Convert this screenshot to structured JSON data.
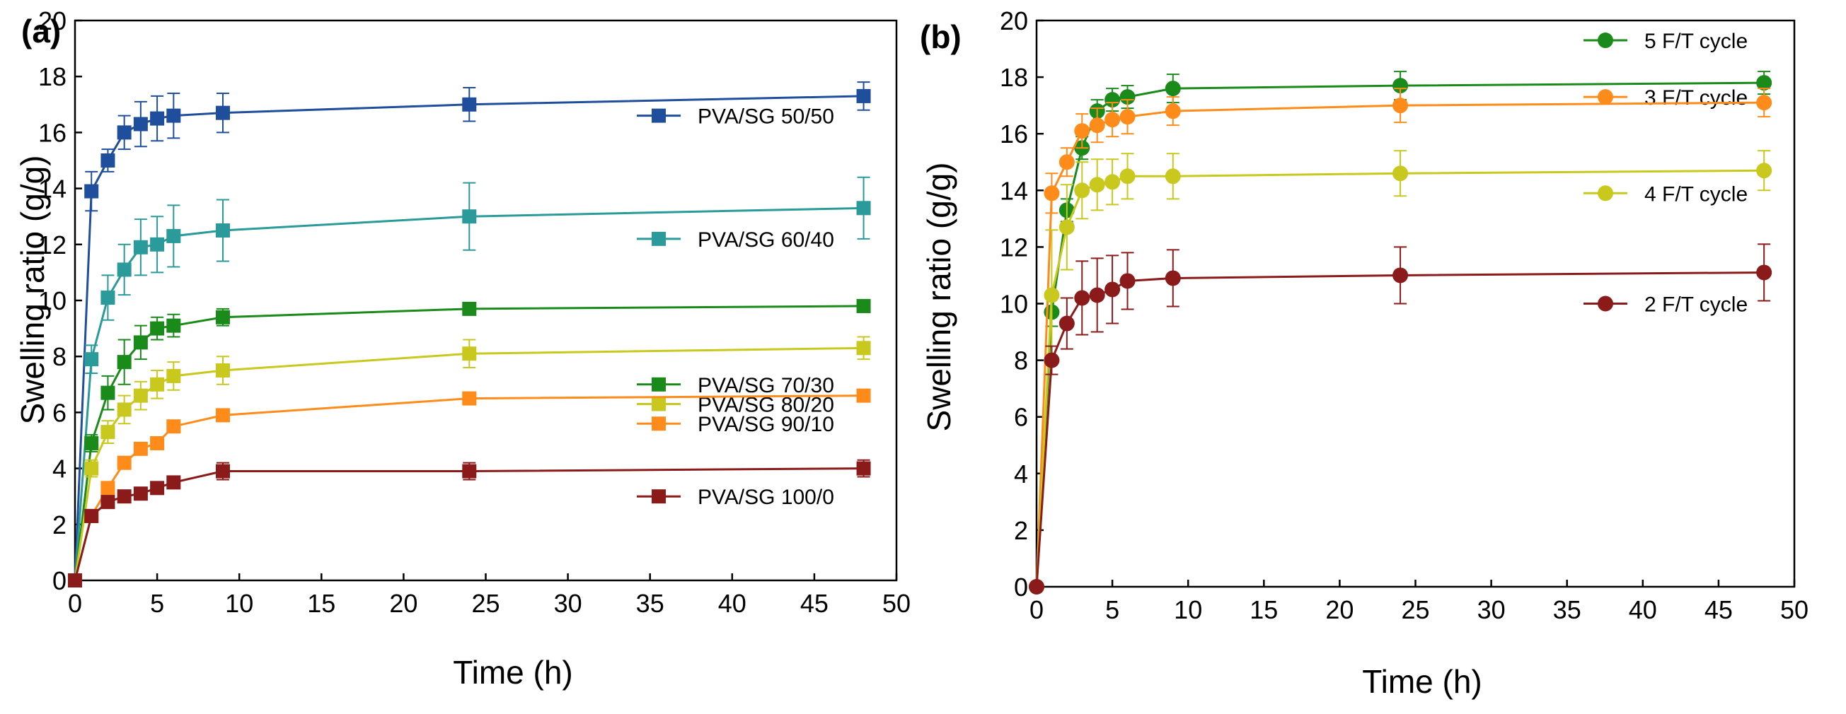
{
  "chart_data": [
    {
      "type": "line",
      "panel_label": "(a)",
      "xlabel": "Time (h)",
      "ylabel": "Swelling ratio (g/g)",
      "xlim": [
        0,
        50
      ],
      "ylim": [
        0,
        20
      ],
      "xticks": [
        "0",
        "5",
        "10",
        "15",
        "20",
        "25",
        "30",
        "35",
        "40",
        "45",
        "50"
      ],
      "yticks": [
        "0",
        "2",
        "4",
        "6",
        "8",
        "10",
        "12",
        "14",
        "16",
        "18",
        "20"
      ],
      "grid": false,
      "marker": "square",
      "x": [
        0,
        1,
        2,
        3,
        4,
        5,
        6,
        9,
        24,
        48
      ],
      "series": [
        {
          "name": "PVA/SG 50/50",
          "color": "#1f4e9c",
          "values": [
            0,
            13.9,
            15.0,
            16.0,
            16.3,
            16.5,
            16.6,
            16.7,
            17.0,
            17.3
          ],
          "errors": [
            0,
            0.7,
            0.4,
            0.6,
            0.8,
            0.8,
            0.8,
            0.7,
            0.6,
            0.5
          ],
          "legend_y": 16.6
        },
        {
          "name": "PVA/SG 60/40",
          "color": "#2a9a9a",
          "values": [
            0,
            7.9,
            10.1,
            11.1,
            11.9,
            12.0,
            12.3,
            12.5,
            13.0,
            13.3
          ],
          "errors": [
            0,
            0.5,
            0.8,
            0.9,
            1.0,
            1.0,
            1.1,
            1.1,
            1.2,
            1.1
          ],
          "legend_y": 12.2
        },
        {
          "name": "PVA/SG 70/30",
          "color": "#1a8a1a",
          "values": [
            0,
            4.9,
            6.7,
            7.8,
            8.5,
            9.0,
            9.1,
            9.4,
            9.7,
            9.8
          ],
          "errors": [
            0,
            0.3,
            0.6,
            0.8,
            0.6,
            0.4,
            0.4,
            0.3,
            0.2,
            0.2
          ],
          "legend_y": 7.0
        },
        {
          "name": "PVA/SG 80/20",
          "color": "#c8c81e",
          "values": [
            0,
            4.0,
            5.3,
            6.1,
            6.6,
            7.0,
            7.3,
            7.5,
            8.1,
            8.3
          ],
          "errors": [
            0,
            0.3,
            0.4,
            0.5,
            0.5,
            0.5,
            0.5,
            0.5,
            0.5,
            0.4
          ],
          "legend_y": 6.3
        },
        {
          "name": "PVA/SG 90/10",
          "color": "#ff8c1a",
          "values": [
            0,
            2.3,
            3.3,
            4.2,
            4.7,
            4.9,
            5.5,
            5.9,
            6.5,
            6.6
          ],
          "errors": [
            0,
            0.2,
            0.2,
            0.2,
            0.2,
            0.2,
            0.2,
            0.2,
            0.2,
            0.2
          ],
          "legend_y": 5.6
        },
        {
          "name": "PVA/SG 100/0",
          "color": "#8b1a1a",
          "values": [
            0,
            2.3,
            2.8,
            3.0,
            3.1,
            3.3,
            3.5,
            3.9,
            3.9,
            4.0
          ],
          "errors": [
            0,
            0.2,
            0.2,
            0.2,
            0.2,
            0.2,
            0.2,
            0.3,
            0.3,
            0.3
          ],
          "legend_y": 3.0
        }
      ]
    },
    {
      "type": "line",
      "panel_label": "(b)",
      "xlabel": "Time (h)",
      "ylabel": "Swelling ratio (g/g)",
      "xlim": [
        0,
        50
      ],
      "ylim": [
        0,
        20
      ],
      "xticks": [
        "0",
        "5",
        "10",
        "15",
        "20",
        "25",
        "30",
        "35",
        "40",
        "45",
        "50"
      ],
      "yticks": [
        "0",
        "2",
        "4",
        "6",
        "8",
        "10",
        "12",
        "14",
        "16",
        "18",
        "20"
      ],
      "grid": false,
      "marker": "circle",
      "x": [
        0,
        1,
        2,
        3,
        4,
        5,
        6,
        9,
        24,
        48
      ],
      "series": [
        {
          "name": "5 F/T cycle",
          "color": "#1a8a1a",
          "values": [
            0,
            9.7,
            13.3,
            15.5,
            16.8,
            17.2,
            17.3,
            17.6,
            17.7,
            17.8
          ],
          "errors": [
            0,
            0.5,
            0.4,
            0.4,
            0.4,
            0.4,
            0.4,
            0.5,
            0.5,
            0.4
          ],
          "legend_y": 19.3
        },
        {
          "name": "3 F/T cycle",
          "color": "#ff8c1a",
          "values": [
            0,
            13.9,
            15.0,
            16.1,
            16.3,
            16.5,
            16.6,
            16.8,
            17.0,
            17.1
          ],
          "errors": [
            0,
            0.7,
            0.5,
            0.6,
            0.6,
            0.6,
            0.6,
            0.5,
            0.6,
            0.5
          ],
          "legend_y": 17.3
        },
        {
          "name": "4 F/T cycle",
          "color": "#c8c81e",
          "values": [
            0,
            10.3,
            12.7,
            14.0,
            14.2,
            14.3,
            14.5,
            14.5,
            14.6,
            14.7
          ],
          "errors": [
            0,
            2.3,
            1.5,
            1.0,
            0.9,
            0.8,
            0.8,
            0.8,
            0.8,
            0.7
          ],
          "legend_y": 13.9
        },
        {
          "name": "2 F/T cycle",
          "color": "#8b1a1a",
          "values": [
            0,
            8.0,
            9.3,
            10.2,
            10.3,
            10.5,
            10.8,
            10.9,
            11.0,
            11.1
          ],
          "errors": [
            0,
            0.5,
            0.9,
            1.3,
            1.3,
            1.2,
            1.0,
            1.0,
            1.0,
            1.0
          ],
          "legend_y": 10.0
        }
      ]
    }
  ]
}
